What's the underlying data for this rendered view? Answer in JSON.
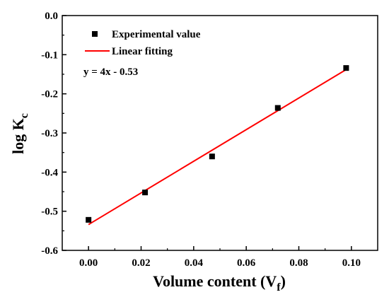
{
  "chart_data": {
    "type": "scatter",
    "xlabel": "Volume content (V",
    "xlabel_sub": "f",
    "xlabel_close": ")",
    "ylabel": "log K",
    "ylabel_sub": "c",
    "xlim": [
      -0.01,
      0.11
    ],
    "ylim": [
      -0.6,
      0.0
    ],
    "xticks": [
      0.0,
      0.02,
      0.04,
      0.06,
      0.08,
      0.1
    ],
    "xtick_labels": [
      "0.00",
      "0.02",
      "0.04",
      "0.06",
      "0.08",
      "0.10"
    ],
    "yticks": [
      0.0,
      -0.1,
      -0.2,
      -0.3,
      -0.4,
      -0.5,
      -0.6
    ],
    "ytick_labels": [
      "0.0",
      "-0.1",
      "-0.2",
      "-0.3",
      "-0.4",
      "-0.5",
      "-0.6"
    ],
    "grid": false,
    "legend_position": "top-left",
    "series": [
      {
        "name": "Experimental value",
        "kind": "scatter",
        "color": "#000000",
        "x": [
          0.0,
          0.0215,
          0.047,
          0.072,
          0.098
        ],
        "y": [
          -0.522,
          -0.452,
          -0.36,
          -0.236,
          -0.134
        ]
      },
      {
        "name": "Linear fitting",
        "kind": "line",
        "color": "#ff0000",
        "x": [
          0.0,
          0.098
        ],
        "y": [
          -0.534,
          -0.138
        ]
      }
    ],
    "annotation": "y = 4x - 0.53"
  }
}
